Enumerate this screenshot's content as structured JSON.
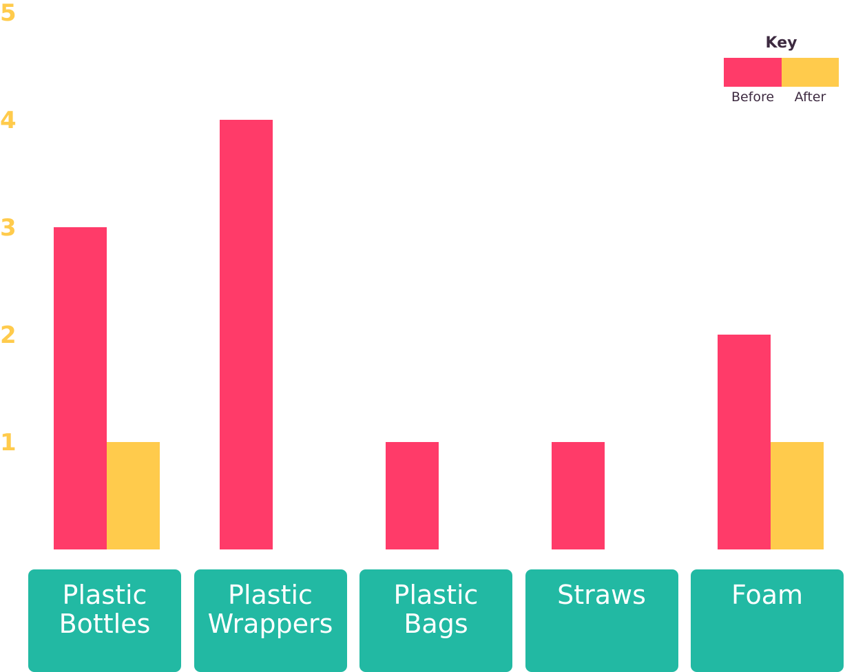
{
  "chart_data": {
    "type": "bar",
    "title": "",
    "xlabel": "",
    "ylabel": "",
    "categories": [
      "Plastic\nBottles",
      "Plastic\nWrappers",
      "Plastic\nBags",
      "Straws",
      "Foam"
    ],
    "series": [
      {
        "name": "Before",
        "color": "#ff3b69",
        "values": [
          3,
          4,
          1,
          1,
          2
        ]
      },
      {
        "name": "After",
        "color": "#ffcb4c",
        "values": [
          1,
          0,
          0,
          0,
          1
        ]
      }
    ],
    "ylim": [
      0,
      5
    ],
    "yticks": [
      "1",
      "2",
      "3",
      "4",
      "5"
    ],
    "grid": false,
    "legend": {
      "title": "Key",
      "placement": "top-right"
    }
  },
  "colors": {
    "category_box": "#22b9a3",
    "tick_text": "#ffcb4c"
  }
}
